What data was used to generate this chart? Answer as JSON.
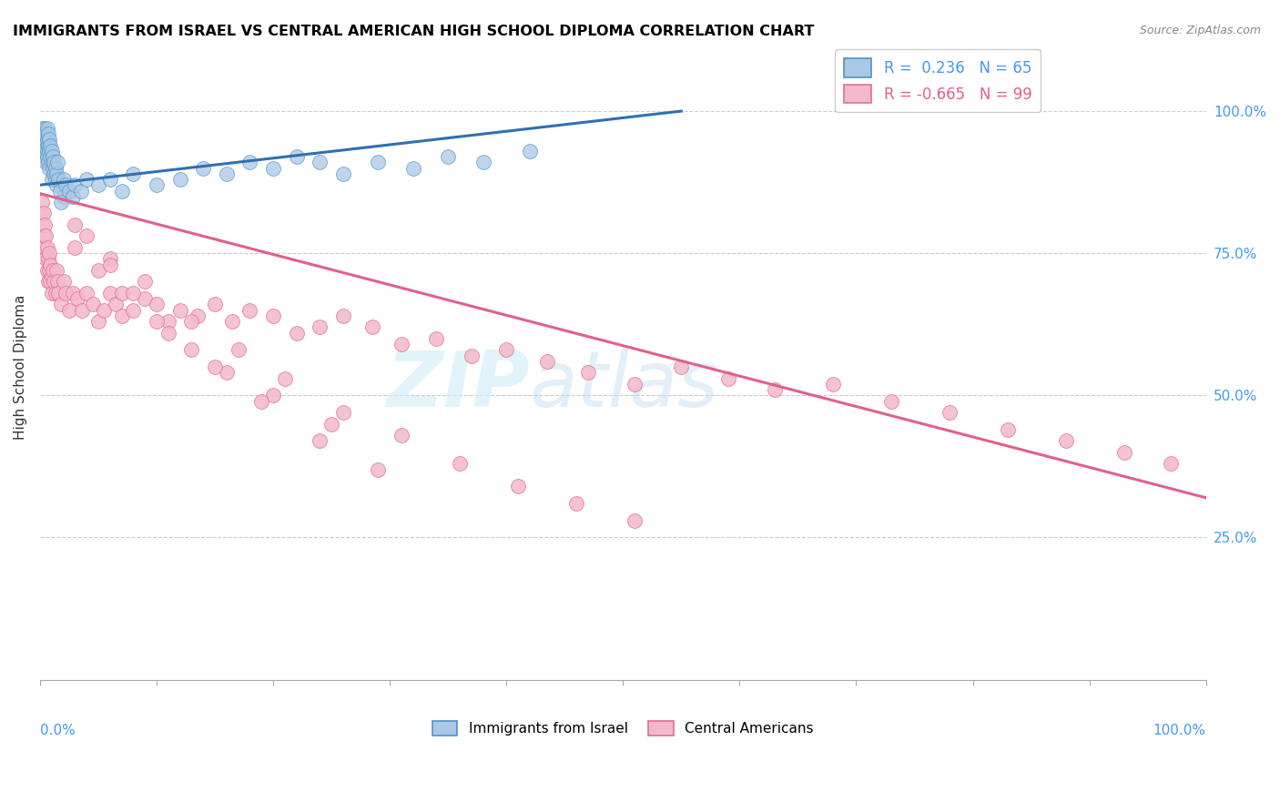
{
  "title": "IMMIGRANTS FROM ISRAEL VS CENTRAL AMERICAN HIGH SCHOOL DIPLOMA CORRELATION CHART",
  "source": "Source: ZipAtlas.com",
  "ylabel": "High School Diploma",
  "right_yticks": [
    0.25,
    0.5,
    0.75,
    1.0
  ],
  "right_yticklabels": [
    "25.0%",
    "50.0%",
    "75.0%",
    "100.0%"
  ],
  "blue_color": "#a8c8e8",
  "pink_color": "#f4b8cc",
  "blue_edge_color": "#5090c0",
  "pink_edge_color": "#e07090",
  "blue_line_color": "#3070b0",
  "pink_line_color": "#e06090",
  "background_color": "#ffffff",
  "grid_color": "#cccccc",
  "watermark_text": "ZIPatlas",
  "legend_blue_label": "R =  0.236   N = 65",
  "legend_pink_label": "R = -0.665   N = 99",
  "blue_scatter_x": [
    0.001,
    0.002,
    0.002,
    0.003,
    0.003,
    0.003,
    0.004,
    0.004,
    0.004,
    0.005,
    0.005,
    0.005,
    0.005,
    0.006,
    0.006,
    0.006,
    0.006,
    0.007,
    0.007,
    0.007,
    0.008,
    0.008,
    0.008,
    0.009,
    0.009,
    0.01,
    0.01,
    0.01,
    0.011,
    0.011,
    0.012,
    0.012,
    0.013,
    0.013,
    0.014,
    0.014,
    0.015,
    0.016,
    0.017,
    0.018,
    0.02,
    0.022,
    0.025,
    0.028,
    0.03,
    0.035,
    0.04,
    0.05,
    0.06,
    0.07,
    0.08,
    0.1,
    0.12,
    0.14,
    0.16,
    0.18,
    0.2,
    0.22,
    0.24,
    0.26,
    0.29,
    0.32,
    0.35,
    0.38,
    0.42
  ],
  "blue_scatter_y": [
    0.96,
    0.94,
    0.97,
    0.95,
    0.93,
    0.96,
    0.92,
    0.94,
    0.97,
    0.93,
    0.95,
    0.91,
    0.96,
    0.93,
    0.95,
    0.92,
    0.97,
    0.94,
    0.96,
    0.91,
    0.93,
    0.95,
    0.9,
    0.92,
    0.94,
    0.88,
    0.91,
    0.93,
    0.9,
    0.92,
    0.89,
    0.91,
    0.88,
    0.9,
    0.87,
    0.89,
    0.91,
    0.88,
    0.86,
    0.84,
    0.88,
    0.87,
    0.86,
    0.85,
    0.87,
    0.86,
    0.88,
    0.87,
    0.88,
    0.86,
    0.89,
    0.87,
    0.88,
    0.9,
    0.89,
    0.91,
    0.9,
    0.92,
    0.91,
    0.89,
    0.91,
    0.9,
    0.92,
    0.91,
    0.93
  ],
  "pink_scatter_x": [
    0.001,
    0.002,
    0.002,
    0.003,
    0.003,
    0.004,
    0.004,
    0.005,
    0.005,
    0.006,
    0.006,
    0.007,
    0.007,
    0.008,
    0.008,
    0.009,
    0.009,
    0.01,
    0.01,
    0.011,
    0.012,
    0.013,
    0.014,
    0.015,
    0.016,
    0.018,
    0.02,
    0.022,
    0.025,
    0.028,
    0.032,
    0.036,
    0.04,
    0.045,
    0.05,
    0.055,
    0.06,
    0.065,
    0.07,
    0.08,
    0.09,
    0.1,
    0.11,
    0.12,
    0.135,
    0.15,
    0.165,
    0.18,
    0.2,
    0.22,
    0.24,
    0.26,
    0.285,
    0.31,
    0.34,
    0.37,
    0.4,
    0.435,
    0.47,
    0.51,
    0.55,
    0.59,
    0.63,
    0.68,
    0.73,
    0.78,
    0.83,
    0.88,
    0.93,
    0.97,
    0.03,
    0.05,
    0.07,
    0.1,
    0.13,
    0.16,
    0.2,
    0.25,
    0.03,
    0.06,
    0.09,
    0.13,
    0.17,
    0.21,
    0.26,
    0.31,
    0.36,
    0.41,
    0.46,
    0.51,
    0.02,
    0.04,
    0.06,
    0.08,
    0.11,
    0.15,
    0.19,
    0.24,
    0.29
  ],
  "pink_scatter_y": [
    0.82,
    0.8,
    0.84,
    0.78,
    0.82,
    0.76,
    0.8,
    0.78,
    0.74,
    0.76,
    0.72,
    0.74,
    0.7,
    0.72,
    0.75,
    0.7,
    0.73,
    0.68,
    0.71,
    0.72,
    0.7,
    0.68,
    0.72,
    0.7,
    0.68,
    0.66,
    0.7,
    0.68,
    0.65,
    0.68,
    0.67,
    0.65,
    0.68,
    0.66,
    0.63,
    0.65,
    0.68,
    0.66,
    0.64,
    0.65,
    0.67,
    0.66,
    0.63,
    0.65,
    0.64,
    0.66,
    0.63,
    0.65,
    0.64,
    0.61,
    0.62,
    0.64,
    0.62,
    0.59,
    0.6,
    0.57,
    0.58,
    0.56,
    0.54,
    0.52,
    0.55,
    0.53,
    0.51,
    0.52,
    0.49,
    0.47,
    0.44,
    0.42,
    0.4,
    0.38,
    0.76,
    0.72,
    0.68,
    0.63,
    0.58,
    0.54,
    0.5,
    0.45,
    0.8,
    0.74,
    0.7,
    0.63,
    0.58,
    0.53,
    0.47,
    0.43,
    0.38,
    0.34,
    0.31,
    0.28,
    0.85,
    0.78,
    0.73,
    0.68,
    0.61,
    0.55,
    0.49,
    0.42,
    0.37
  ]
}
